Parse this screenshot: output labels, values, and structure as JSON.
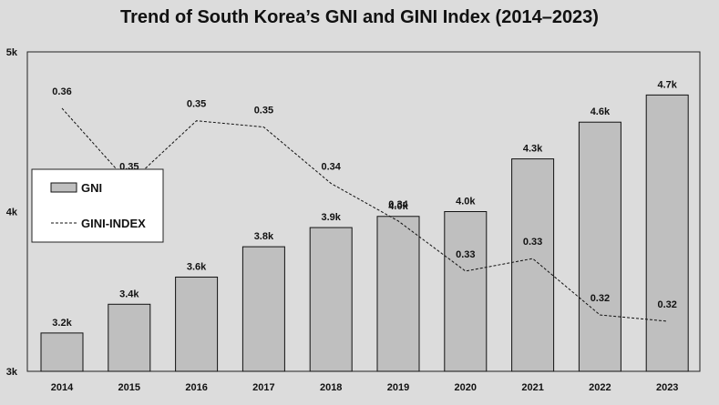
{
  "chart_data": {
    "type": "bar",
    "title": "Trend of South Korea’s GNI and GINI Index (2014–2023)",
    "categories": [
      "2014",
      "2015",
      "2016",
      "2017",
      "2018",
      "2019",
      "2020",
      "2021",
      "2022",
      "2023"
    ],
    "series": [
      {
        "name": "GNI",
        "type": "bar",
        "values": [
          3240,
          3420,
          3590,
          3780,
          3900,
          3970,
          4000,
          4330,
          4560,
          4730
        ],
        "labels": [
          "3.2k",
          "3.4k",
          "3.6k",
          "3.8k",
          "3.9k",
          "4.0k",
          "4.0k",
          "4.3k",
          "4.6k",
          "4.7k"
        ]
      },
      {
        "name": "GINI-INDEX",
        "type": "line",
        "values": [
          0.357,
          0.345,
          0.355,
          0.354,
          0.345,
          0.339,
          0.331,
          0.333,
          0.324,
          0.323
        ],
        "labels": [
          "0.36",
          "0.35",
          "0.35",
          "0.35",
          "0.34",
          "0.34",
          "0.33",
          "0.33",
          "0.32",
          "0.32"
        ]
      }
    ],
    "y_axis": {
      "min": 3000,
      "max": 5000,
      "ticks": [
        3000,
        4000,
        5000
      ],
      "tick_labels": [
        "3k",
        "4k",
        "5k"
      ]
    },
    "secondary_axis": {
      "min": 0.315,
      "max": 0.366,
      "shown": false
    },
    "grid": false,
    "legend_position": "left",
    "colors": {
      "bar_fill": "#bfbfbf",
      "bar_stroke": "#111111",
      "line": "#111111",
      "background": "#dcdcdc"
    }
  }
}
